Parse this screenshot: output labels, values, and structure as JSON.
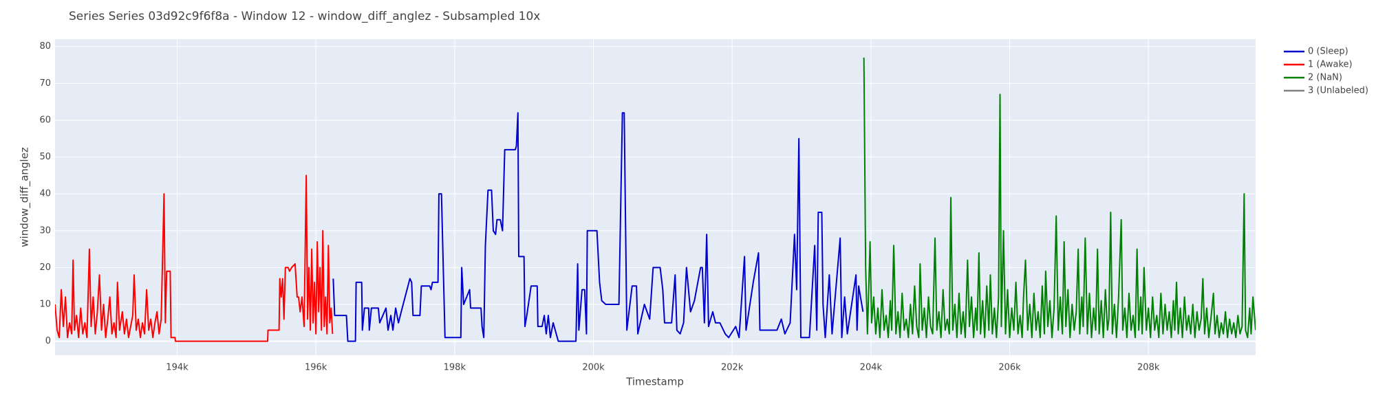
{
  "chart_data": {
    "type": "line",
    "title": "Series Series 03d92c9f6f8a - Window 12 - window_diff_anglez - Subsampled 10x",
    "x_label": "Timestamp",
    "y_label": "window_diff_anglez",
    "xlim": [
      192240,
      209545
    ],
    "ylim": [
      -3.8,
      82
    ],
    "xticks": [
      {
        "value": 194000,
        "label": "194k"
      },
      {
        "value": 196000,
        "label": "196k"
      },
      {
        "value": 198000,
        "label": "198k"
      },
      {
        "value": 200000,
        "label": "200k"
      },
      {
        "value": 202000,
        "label": "202k"
      },
      {
        "value": 204000,
        "label": "204k"
      },
      {
        "value": 206000,
        "label": "206k"
      },
      {
        "value": 208000,
        "label": "208k"
      }
    ],
    "yticks": [
      0,
      10,
      20,
      30,
      40,
      50,
      60,
      70,
      80
    ],
    "grid": true,
    "series": [
      {
        "name": "0 (Sleep)",
        "color": "#0000cd",
        "x": [
          196250,
          196270,
          196440,
          196460,
          196570,
          196580,
          196660,
          196670,
          196700,
          196760,
          196770,
          196800,
          196900,
          196920,
          197010,
          197040,
          197080,
          197110,
          197150,
          197190,
          197230,
          197355,
          197380,
          197400,
          197500,
          197520,
          197640,
          197660,
          197680,
          197760,
          197773,
          197810,
          197836,
          197861,
          198089,
          198102,
          198130,
          198216,
          198230,
          198380,
          198395,
          198420,
          198443,
          198481,
          198532,
          198557,
          198590,
          198610,
          198658,
          198690,
          198722,
          198874,
          198890,
          198912,
          198924,
          199000,
          199013,
          199040,
          199102,
          199190,
          199200,
          199260,
          199292,
          199320,
          199350,
          199380,
          199420,
          199494,
          199748,
          199773,
          199790,
          199836,
          199874,
          199900,
          199912,
          200051,
          200089,
          200120,
          200178,
          200368,
          200418,
          200444,
          200482,
          200558,
          200621,
          200640,
          200735,
          200811,
          200861,
          200962,
          201000,
          201026,
          201127,
          201178,
          201203,
          201250,
          201300,
          201342,
          201400,
          201456,
          201545,
          201570,
          201600,
          201633,
          201660,
          201720,
          201760,
          201823,
          201900,
          201950,
          202051,
          202100,
          202178,
          202200,
          202304,
          202380,
          202400,
          202646,
          202709,
          202760,
          202836,
          202899,
          202930,
          202962,
          202990,
          203114,
          203190,
          203220,
          203241,
          203292,
          203310,
          203342,
          203400,
          203440,
          203557,
          203580,
          203621,
          203660,
          203785,
          203800,
          203823,
          203886
        ],
        "values": [
          17,
          7,
          7,
          0,
          0,
          16,
          16,
          3,
          9,
          9,
          3,
          9,
          9,
          5,
          9,
          3,
          7,
          3,
          9,
          5,
          8,
          17,
          16,
          7,
          7,
          15,
          15,
          14,
          16,
          16,
          40,
          40,
          20,
          1,
          1,
          20,
          10,
          14,
          9,
          9,
          4,
          1,
          26,
          41,
          41,
          30,
          29,
          33,
          33,
          30,
          52,
          52,
          53,
          62,
          23,
          23,
          4,
          7,
          15,
          15,
          4,
          4,
          7,
          2,
          7,
          1,
          5,
          0,
          0,
          21,
          3,
          14,
          14,
          2,
          30,
          30,
          16,
          11,
          10,
          10,
          62,
          62,
          3,
          15,
          15,
          2,
          10,
          6,
          20,
          20,
          14,
          5,
          5,
          18,
          3,
          2,
          5,
          20,
          8,
          11,
          20,
          20,
          5,
          29,
          4,
          8,
          5,
          5,
          2,
          1,
          4,
          1,
          23,
          3,
          16,
          24,
          3,
          3,
          6,
          2,
          5,
          29,
          14,
          55,
          1,
          1,
          26,
          3,
          35,
          35,
          10,
          1,
          18,
          2,
          28,
          1,
          12,
          2,
          18,
          3,
          15,
          8
        ]
      },
      {
        "name": "1 (Awake)",
        "color": "#ff0000",
        "x": [
          192240,
          192270,
          192300,
          192330,
          192360,
          192390,
          192420,
          192450,
          192480,
          192500,
          192520,
          192550,
          192580,
          192610,
          192640,
          192670,
          192700,
          192735,
          192760,
          192790,
          192820,
          192850,
          192880,
          192910,
          192940,
          192970,
          193000,
          193030,
          193060,
          193090,
          193120,
          193140,
          193170,
          193210,
          193240,
          193270,
          193300,
          193330,
          193360,
          193380,
          193410,
          193440,
          193470,
          193500,
          193530,
          193560,
          193590,
          193620,
          193650,
          193680,
          193710,
          193740,
          193770,
          193811,
          193830,
          193849,
          193900,
          193912,
          193970,
          193975,
          195304,
          195310,
          195469,
          195480,
          195500,
          195520,
          195540,
          195560,
          195600,
          195620,
          195650,
          195700,
          195730,
          195750,
          195773,
          195800,
          195830,
          195861,
          195880,
          195900,
          195920,
          195940,
          195960,
          195980,
          196000,
          196020,
          196040,
          196060,
          196080,
          196100,
          196120,
          196140,
          196160,
          196180,
          196200,
          196220,
          196240
        ],
        "values": [
          10,
          3,
          1,
          14,
          4,
          12,
          1,
          5,
          2,
          22,
          3,
          7,
          1,
          9,
          2,
          5,
          1,
          25,
          4,
          12,
          2,
          8,
          18,
          3,
          10,
          1,
          6,
          12,
          2,
          5,
          1,
          16,
          3,
          8,
          2,
          6,
          1,
          4,
          7,
          18,
          3,
          6,
          1,
          5,
          2,
          14,
          3,
          6,
          1,
          5,
          8,
          2,
          6,
          40,
          5,
          19,
          19,
          1,
          1,
          0,
          0,
          3,
          3,
          17,
          12,
          17,
          6,
          20,
          20,
          19,
          20,
          21,
          12,
          12,
          8,
          12,
          4,
          45,
          6,
          20,
          3,
          25,
          5,
          16,
          2,
          27,
          8,
          20,
          3,
          30,
          4,
          12,
          2,
          26,
          5,
          9,
          2
        ]
      },
      {
        "name": "2 (NaN)",
        "color": "#008000",
        "x": [
          203899,
          203924,
          203950,
          203988,
          204010,
          204040,
          204070,
          204100,
          204130,
          204160,
          204190,
          204220,
          204250,
          204280,
          204300,
          204329,
          204360,
          204390,
          204420,
          204450,
          204480,
          204510,
          204540,
          204570,
          204600,
          204630,
          204660,
          204690,
          204709,
          204740,
          204770,
          204800,
          204830,
          204860,
          204890,
          204924,
          204950,
          204980,
          205010,
          205040,
          205070,
          205100,
          205130,
          205152,
          205180,
          205210,
          205240,
          205270,
          205300,
          205330,
          205360,
          205393,
          205420,
          205450,
          205480,
          205510,
          205530,
          205557,
          205580,
          205610,
          205640,
          205670,
          205700,
          205722,
          205750,
          205780,
          205810,
          205840,
          205861,
          205880,
          205911,
          205940,
          205970,
          206000,
          206030,
          206060,
          206090,
          206120,
          206150,
          206180,
          206200,
          206228,
          206260,
          206290,
          206320,
          206350,
          206380,
          206410,
          206440,
          206470,
          206500,
          206519,
          206550,
          206580,
          206610,
          206640,
          206671,
          206700,
          206730,
          206760,
          206785,
          206810,
          206840,
          206870,
          206900,
          206930,
          206960,
          206988,
          207010,
          207040,
          207060,
          207089,
          207120,
          207150,
          207180,
          207210,
          207240,
          207266,
          207290,
          207320,
          207350,
          207380,
          207410,
          207430,
          207456,
          207480,
          207510,
          207540,
          207570,
          207608,
          207630,
          207660,
          207690,
          207720,
          207750,
          207780,
          207810,
          207836,
          207860,
          207890,
          207910,
          207937,
          207970,
          208000,
          208030,
          208060,
          208090,
          208120,
          208150,
          208180,
          208210,
          208240,
          208270,
          208300,
          208330,
          208360,
          208380,
          208405,
          208430,
          208460,
          208490,
          208520,
          208550,
          208580,
          208610,
          208640,
          208670,
          208700,
          208730,
          208760,
          208785,
          208810,
          208840,
          208870,
          208900,
          208937,
          208960,
          208990,
          209020,
          209050,
          209080,
          209110,
          209140,
          209170,
          209200,
          209230,
          209260,
          209290,
          209320,
          209350,
          209380,
          209400,
          209430,
          209460,
          209480,
          209507,
          209545
        ],
        "values": [
          77,
          20,
          2,
          27,
          5,
          12,
          2,
          9,
          1,
          14,
          3,
          7,
          1,
          11,
          3,
          26,
          2,
          8,
          1,
          13,
          3,
          6,
          1,
          10,
          2,
          15,
          4,
          1,
          21,
          3,
          9,
          1,
          12,
          4,
          2,
          28,
          3,
          8,
          1,
          14,
          3,
          6,
          2,
          39,
          3,
          10,
          1,
          13,
          2,
          8,
          1,
          22,
          4,
          12,
          1,
          9,
          3,
          24,
          2,
          11,
          1,
          15,
          3,
          18,
          2,
          9,
          1,
          12,
          67,
          4,
          30,
          2,
          14,
          1,
          9,
          3,
          16,
          2,
          7,
          1,
          12,
          22,
          3,
          10,
          1,
          13,
          3,
          8,
          1,
          15,
          2,
          19,
          4,
          11,
          1,
          9,
          34,
          3,
          12,
          2,
          27,
          4,
          14,
          1,
          10,
          3,
          8,
          25,
          2,
          12,
          4,
          28,
          2,
          13,
          1,
          9,
          3,
          25,
          2,
          11,
          1,
          14,
          3,
          6,
          35,
          2,
          10,
          1,
          12,
          33,
          3,
          9,
          1,
          13,
          3,
          7,
          1,
          25,
          3,
          12,
          2,
          20,
          3,
          9,
          1,
          12,
          3,
          7,
          1,
          13,
          2,
          10,
          3,
          8,
          1,
          11,
          3,
          16,
          2,
          9,
          1,
          12,
          3,
          7,
          2,
          10,
          1,
          8,
          3,
          6,
          17,
          2,
          9,
          1,
          6,
          13,
          2,
          7,
          1,
          5,
          2,
          8,
          1,
          6,
          2,
          5,
          1,
          7,
          2,
          4,
          40,
          3,
          1,
          9,
          2,
          12,
          3
        ]
      },
      {
        "name": "3 (Unlabeled)",
        "color": "#808080",
        "x": [],
        "values": []
      }
    ]
  }
}
